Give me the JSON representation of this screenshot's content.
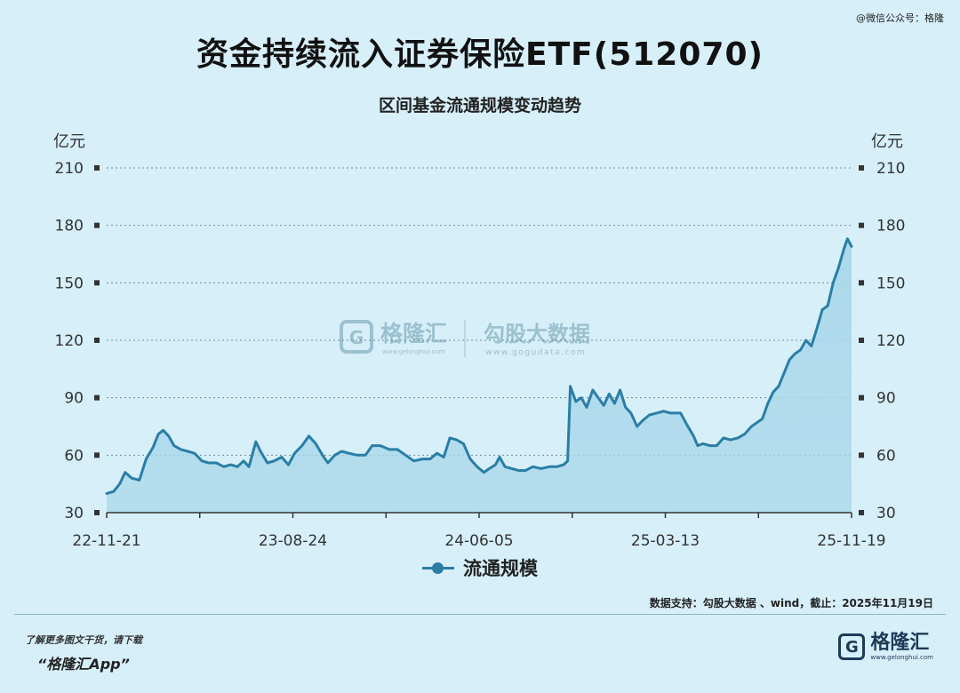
{
  "header": {
    "credit": "@微信公众号：格隆",
    "title": "资金持续流入证券保险ETF(512070)",
    "subtitle": "区间基金流通规模变动趋势"
  },
  "watermark": {
    "brand1": "格隆汇",
    "brand1_url": "www.gelonghui.com",
    "brand2": "勾股大数据",
    "brand2_url": "www.gogudata.com"
  },
  "source": "数据支持：勾股大数据 、wind，截止：2025年11月19日",
  "footer": {
    "tip": "了解更多图文干货，请下载",
    "app": "“格隆汇App”",
    "logo_name": "格隆汇",
    "logo_url": "www.gelonghui.com",
    "logo_icon": "G-logo-icon"
  },
  "colors": {
    "background": "#d7eff9",
    "line": "#2a7ea6",
    "area": "#a9d8ea",
    "grid": "#6f8c98"
  },
  "chart_data": {
    "type": "area",
    "ylabel_left": "亿元",
    "ylabel_right": "亿元",
    "ylim": [
      30,
      210
    ],
    "yticks": [
      30,
      60,
      90,
      120,
      150,
      180,
      210
    ],
    "xticks": [
      "22-11-21",
      "23-08-24",
      "24-06-05",
      "25-03-13",
      "25-11-19"
    ],
    "xlim": [
      "2022-11-21",
      "2025-11-19"
    ],
    "grid": "horizontal dotted",
    "legend": "bottom-center",
    "series": [
      {
        "name": "流通规模",
        "points": [
          [
            "2022-11-21",
            40
          ],
          [
            "2022-12-01",
            41
          ],
          [
            "2022-12-10",
            45
          ],
          [
            "2022-12-18",
            51
          ],
          [
            "2022-12-28",
            48
          ],
          [
            "2023-01-08",
            47
          ],
          [
            "2023-01-18",
            58
          ],
          [
            "2023-01-28",
            64
          ],
          [
            "2023-02-05",
            71
          ],
          [
            "2023-02-12",
            73
          ],
          [
            "2023-02-20",
            70
          ],
          [
            "2023-02-28",
            65
          ],
          [
            "2023-03-10",
            63
          ],
          [
            "2023-03-20",
            62
          ],
          [
            "2023-03-30",
            61
          ],
          [
            "2023-04-10",
            57
          ],
          [
            "2023-04-20",
            56
          ],
          [
            "2023-05-01",
            56
          ],
          [
            "2023-05-12",
            54
          ],
          [
            "2023-05-22",
            55
          ],
          [
            "2023-06-01",
            54
          ],
          [
            "2023-06-10",
            57
          ],
          [
            "2023-06-18",
            54
          ],
          [
            "2023-06-28",
            67
          ],
          [
            "2023-07-05",
            62
          ],
          [
            "2023-07-15",
            56
          ],
          [
            "2023-07-25",
            57
          ],
          [
            "2023-08-05",
            59
          ],
          [
            "2023-08-15",
            55
          ],
          [
            "2023-08-24",
            61
          ],
          [
            "2023-09-04",
            65
          ],
          [
            "2023-09-14",
            70
          ],
          [
            "2023-09-24",
            66
          ],
          [
            "2023-10-04",
            60
          ],
          [
            "2023-10-12",
            56
          ],
          [
            "2023-10-22",
            60
          ],
          [
            "2023-11-01",
            62
          ],
          [
            "2023-11-12",
            61
          ],
          [
            "2023-11-24",
            60
          ],
          [
            "2023-12-06",
            60
          ],
          [
            "2023-12-16",
            65
          ],
          [
            "2023-12-28",
            65
          ],
          [
            "2024-01-10",
            63
          ],
          [
            "2024-01-22",
            63
          ],
          [
            "2024-02-03",
            60
          ],
          [
            "2024-02-15",
            57
          ],
          [
            "2024-02-28",
            58
          ],
          [
            "2024-03-10",
            58
          ],
          [
            "2024-03-20",
            61
          ],
          [
            "2024-03-30",
            59
          ],
          [
            "2024-04-08",
            69
          ],
          [
            "2024-04-18",
            68
          ],
          [
            "2024-04-28",
            66
          ],
          [
            "2024-05-08",
            58
          ],
          [
            "2024-05-18",
            54
          ],
          [
            "2024-05-28",
            51
          ],
          [
            "2024-06-05",
            53
          ],
          [
            "2024-06-14",
            55
          ],
          [
            "2024-06-20",
            59
          ],
          [
            "2024-06-28",
            54
          ],
          [
            "2024-07-08",
            53
          ],
          [
            "2024-07-18",
            52
          ],
          [
            "2024-07-28",
            52
          ],
          [
            "2024-08-08",
            54
          ],
          [
            "2024-08-20",
            53
          ],
          [
            "2024-09-01",
            54
          ],
          [
            "2024-09-12",
            54
          ],
          [
            "2024-09-22",
            55
          ],
          [
            "2024-09-28",
            57
          ],
          [
            "2024-10-02",
            96
          ],
          [
            "2024-10-10",
            88
          ],
          [
            "2024-10-18",
            90
          ],
          [
            "2024-10-26",
            85
          ],
          [
            "2024-11-04",
            94
          ],
          [
            "2024-11-12",
            90
          ],
          [
            "2024-11-20",
            86
          ],
          [
            "2024-11-28",
            92
          ],
          [
            "2024-12-06",
            87
          ],
          [
            "2024-12-14",
            94
          ],
          [
            "2024-12-22",
            85
          ],
          [
            "2024-12-30",
            82
          ],
          [
            "2025-01-08",
            75
          ],
          [
            "2025-01-16",
            78
          ],
          [
            "2025-01-26",
            81
          ],
          [
            "2025-02-06",
            82
          ],
          [
            "2025-02-16",
            83
          ],
          [
            "2025-02-26",
            82
          ],
          [
            "2025-03-06",
            82
          ],
          [
            "2025-03-13",
            82
          ],
          [
            "2025-03-22",
            76
          ],
          [
            "2025-04-01",
            70
          ],
          [
            "2025-04-07",
            65
          ],
          [
            "2025-04-15",
            66
          ],
          [
            "2025-04-25",
            65
          ],
          [
            "2025-05-05",
            65
          ],
          [
            "2025-05-15",
            69
          ],
          [
            "2025-05-25",
            68
          ],
          [
            "2025-06-05",
            69
          ],
          [
            "2025-06-15",
            71
          ],
          [
            "2025-06-25",
            75
          ],
          [
            "2025-07-03",
            77
          ],
          [
            "2025-07-11",
            79
          ],
          [
            "2025-07-19",
            87
          ],
          [
            "2025-07-27",
            93
          ],
          [
            "2025-08-04",
            96
          ],
          [
            "2025-08-12",
            103
          ],
          [
            "2025-08-20",
            110
          ],
          [
            "2025-08-28",
            113
          ],
          [
            "2025-09-05",
            115
          ],
          [
            "2025-09-13",
            120
          ],
          [
            "2025-09-21",
            117
          ],
          [
            "2025-09-29",
            126
          ],
          [
            "2025-10-07",
            136
          ],
          [
            "2025-10-15",
            138
          ],
          [
            "2025-10-23",
            150
          ],
          [
            "2025-10-31",
            158
          ],
          [
            "2025-11-08",
            168
          ],
          [
            "2025-11-13",
            173
          ],
          [
            "2025-11-19",
            169
          ]
        ]
      }
    ]
  }
}
